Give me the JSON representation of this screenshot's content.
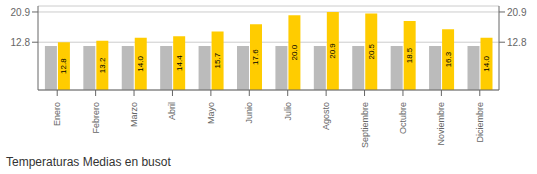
{
  "chart_data": {
    "type": "bar",
    "title": "Temperaturas Medias en busot",
    "categories": [
      "Enero",
      "Febrero",
      "Marzo",
      "Abril",
      "Mayo",
      "Junio",
      "Julio",
      "Agosto",
      "Septiembre",
      "Octubre",
      "Noviembre",
      "Diciembre"
    ],
    "series": [
      {
        "color": "#BBBBBB",
        "values": [
          11.8,
          11.8,
          11.8,
          11.8,
          11.8,
          11.8,
          11.8,
          11.8,
          11.8,
          11.8,
          11.8,
          11.8
        ]
      },
      {
        "color": "#FFCC00",
        "values": [
          12.8,
          13.2,
          14.0,
          14.4,
          15.7,
          17.6,
          20.0,
          20.9,
          20.5,
          18.5,
          16.3,
          14.0
        ],
        "value_labels": [
          "12.8",
          "13.2",
          "14.0",
          "14.4",
          "15.7",
          "17.6",
          "20.0",
          "20.9",
          "20.5",
          "18.5",
          "16.3",
          "14.0"
        ],
        "data_labels": true
      }
    ],
    "ylim": [
      0,
      22.5
    ],
    "yticks": [
      12.8,
      20.9
    ],
    "y2lim": [
      0,
      22.5
    ],
    "y2ticks": [
      12.8,
      20.9
    ],
    "grid": true
  }
}
